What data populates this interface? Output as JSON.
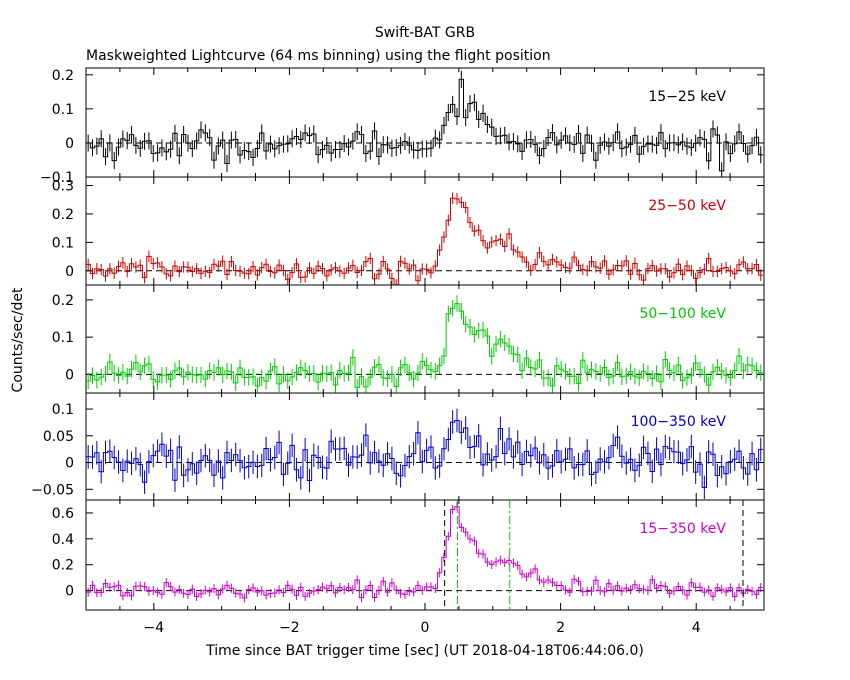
{
  "title": "Swift-BAT GRB",
  "subtitle": "Maskweighted Lightcurve (64 ms binning) using the flight position",
  "xlabel": "Time since BAT trigger time [sec] (UT 2018-04-18T06:44:06.0)",
  "ylabel": "Counts/sec/det",
  "chart_data": {
    "type": "line",
    "xlim": [
      -5,
      5
    ],
    "x_ticks": [
      -4,
      -2,
      0,
      2,
      4
    ],
    "x_tick_labels": [
      "−4",
      "−2",
      "0",
      "2",
      "4"
    ],
    "bin_width_s": 0.064,
    "step": true,
    "error_bars": true,
    "panels": [
      {
        "id": "p1",
        "band_label": "15−25 keV",
        "color": "#000000",
        "ylim": [
          -0.1,
          0.22
        ],
        "y_ticks": [
          -0.1,
          0,
          0.1,
          0.2
        ],
        "y_tick_labels": [
          "−0.1",
          "0",
          "0.1",
          "0.2"
        ],
        "noise": 0.022,
        "err": 0.025,
        "baseline": -0.005,
        "pulses": [
          {
            "t": 0.55,
            "amp": 0.16,
            "rise": 0.18,
            "decay": 0.35
          }
        ]
      },
      {
        "id": "p2",
        "band_label": "25−50 keV",
        "color": "#cc0000",
        "ylim": [
          -0.05,
          0.33
        ],
        "y_ticks": [
          0,
          0.1,
          0.2,
          0.3
        ],
        "y_tick_labels": [
          "0",
          "0.1",
          "0.2",
          "0.3"
        ],
        "noise": 0.018,
        "err": 0.02,
        "baseline": 0.005,
        "pulses": [
          {
            "t": 0.45,
            "amp": 0.28,
            "rise": 0.12,
            "decay": 0.45
          },
          {
            "t": 1.25,
            "amp": 0.05,
            "rise": 0.15,
            "decay": 0.3
          }
        ]
      },
      {
        "id": "p3",
        "band_label": "50−100 keV",
        "color": "#00cc00",
        "ylim": [
          -0.05,
          0.24
        ],
        "y_ticks": [
          0,
          0.1,
          0.2
        ],
        "y_tick_labels": [
          "0",
          "0.1",
          "0.2"
        ],
        "noise": 0.02,
        "err": 0.022,
        "baseline": 0.005,
        "pulses": [
          {
            "t": 0.45,
            "amp": 0.2,
            "rise": 0.12,
            "decay": 0.35
          },
          {
            "t": 1.25,
            "amp": 0.06,
            "rise": 0.12,
            "decay": 0.25
          }
        ]
      },
      {
        "id": "p4",
        "band_label": "100−350 keV",
        "color": "#0000cc",
        "ylim": [
          -0.07,
          0.13
        ],
        "y_ticks": [
          -0.05,
          0,
          0.05,
          0.1
        ],
        "y_tick_labels": [
          "−0.05",
          "0",
          "0.05",
          "0.1"
        ],
        "noise": 0.02,
        "err": 0.022,
        "baseline": 0.0,
        "pulses": [
          {
            "t": 0.45,
            "amp": 0.08,
            "rise": 0.1,
            "decay": 0.3
          },
          {
            "t": 1.2,
            "amp": 0.02,
            "rise": 0.1,
            "decay": 0.2
          }
        ]
      },
      {
        "id": "p5",
        "band_label": "15−350 keV",
        "color": "#cc00cc",
        "ylim": [
          -0.15,
          0.7
        ],
        "y_ticks": [
          0,
          0.2,
          0.4,
          0.6
        ],
        "y_tick_labels": [
          "0",
          "0.2",
          "0.4",
          "0.6"
        ],
        "noise": 0.03,
        "err": 0.035,
        "baseline": 0.01,
        "pulses": [
          {
            "t": 0.45,
            "amp": 0.62,
            "rise": 0.12,
            "decay": 0.45
          },
          {
            "t": 1.25,
            "amp": 0.12,
            "rise": 0.15,
            "decay": 0.3
          }
        ],
        "vlines": [
          {
            "x": 0.29,
            "style": "black-dashed"
          },
          {
            "x": 4.69,
            "style": "black-dashed"
          },
          {
            "x": 0.48,
            "style": "green-dashdot"
          },
          {
            "x": 1.25,
            "style": "green-dashdot"
          }
        ]
      }
    ]
  }
}
